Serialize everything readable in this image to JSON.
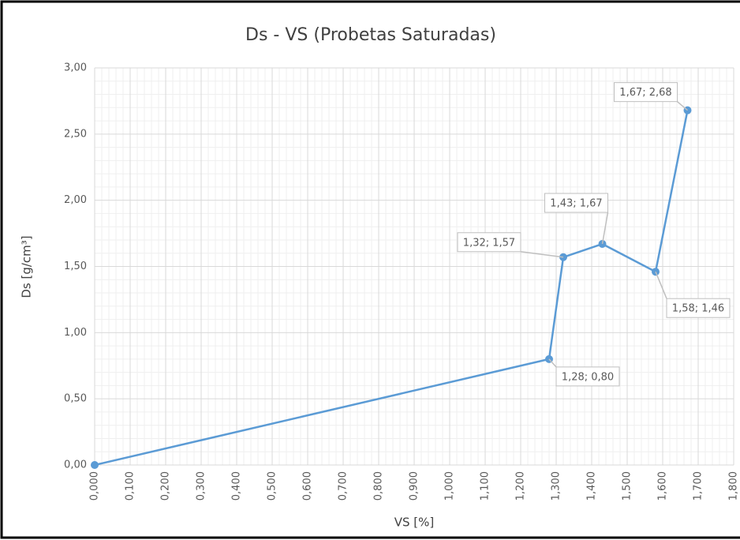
{
  "chart_data": {
    "type": "scatter-line",
    "title": "Ds - VS (Probetas Saturadas)",
    "x_label": "VS [%]",
    "y_label": "Ds [g/cm³]",
    "series": [
      {
        "name": null,
        "color": "#5b9bd5",
        "x": [
          0,
          1.28,
          1.32,
          1.43,
          1.58,
          1.67
        ],
        "values": [
          0,
          0.8,
          1.57,
          1.67,
          1.46,
          2.68
        ],
        "value_labels": [
          null,
          "1,28; 0,80",
          "1,32; 1,57",
          "1,43; 1,67",
          "1,58; 1,46",
          "1,67; 2,68"
        ]
      }
    ],
    "xlim": [
      0,
      1.8
    ],
    "xticks": [
      {
        "value": 0,
        "label": "0,000"
      },
      {
        "value": 0.1,
        "label": "0,100"
      },
      {
        "value": 0.2,
        "label": "0,200"
      },
      {
        "value": 0.3,
        "label": "0,300"
      },
      {
        "value": 0.4,
        "label": "0,400"
      },
      {
        "value": 0.5,
        "label": "0,500"
      },
      {
        "value": 0.6,
        "label": "0,600"
      },
      {
        "value": 0.7,
        "label": "0,700"
      },
      {
        "value": 0.8,
        "label": "0,800"
      },
      {
        "value": 0.9,
        "label": "0,900"
      },
      {
        "value": 1.0,
        "label": "1,000"
      },
      {
        "value": 1.1,
        "label": "1,100"
      },
      {
        "value": 1.2,
        "label": "1,200"
      },
      {
        "value": 1.3,
        "label": "1,300"
      },
      {
        "value": 1.4,
        "label": "1,400"
      },
      {
        "value": 1.5,
        "label": "1,500"
      },
      {
        "value": 1.6,
        "label": "1,600"
      },
      {
        "value": 1.7,
        "label": "1,700"
      },
      {
        "value": 1.8,
        "label": "1,800"
      }
    ],
    "ylim": [
      0,
      3
    ],
    "yticks": [
      {
        "value": 0,
        "label": "0,00"
      },
      {
        "value": 0.5,
        "label": "0,50"
      },
      {
        "value": 1.0,
        "label": "1,00"
      },
      {
        "value": 1.5,
        "label": "1,50"
      },
      {
        "value": 2.0,
        "label": "2,00"
      },
      {
        "value": 2.5,
        "label": "2,50"
      },
      {
        "value": 3.0,
        "label": "3,00"
      }
    ],
    "grid": true,
    "minor_grid": true
  }
}
